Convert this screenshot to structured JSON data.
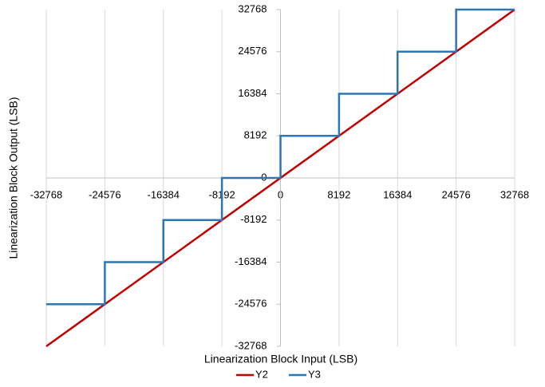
{
  "chart_data": {
    "type": "line",
    "xlabel": "Linearization Block Input (LSB)",
    "ylabel": "Linearization Block Output (LSB)",
    "xlim": [
      -32768,
      32768
    ],
    "ylim": [
      -32768,
      32768
    ],
    "xticks": [
      -32768,
      -24576,
      -16384,
      -8192,
      0,
      8192,
      16384,
      24576,
      32768
    ],
    "yticks": [
      -32768,
      -24576,
      -16384,
      -8192,
      0,
      8192,
      16384,
      24576,
      32768
    ],
    "grid": true,
    "legend": "bottom",
    "series": [
      {
        "name": "Y2",
        "color": "#c00000",
        "x": [
          -32768,
          32768
        ],
        "values": [
          -32768,
          32768
        ]
      },
      {
        "name": "Y3",
        "color": "#2e75b6",
        "x": [
          -32768,
          -24576,
          -24576,
          -16384,
          -16384,
          -8192,
          -8192,
          0,
          0,
          8192,
          8192,
          16384,
          16384,
          24576,
          24576,
          32768
        ],
        "values": [
          -24576,
          -24576,
          -16384,
          -16384,
          -8192,
          -8192,
          0,
          0,
          8192,
          8192,
          16384,
          16384,
          24576,
          24576,
          32768,
          32768
        ]
      }
    ]
  }
}
